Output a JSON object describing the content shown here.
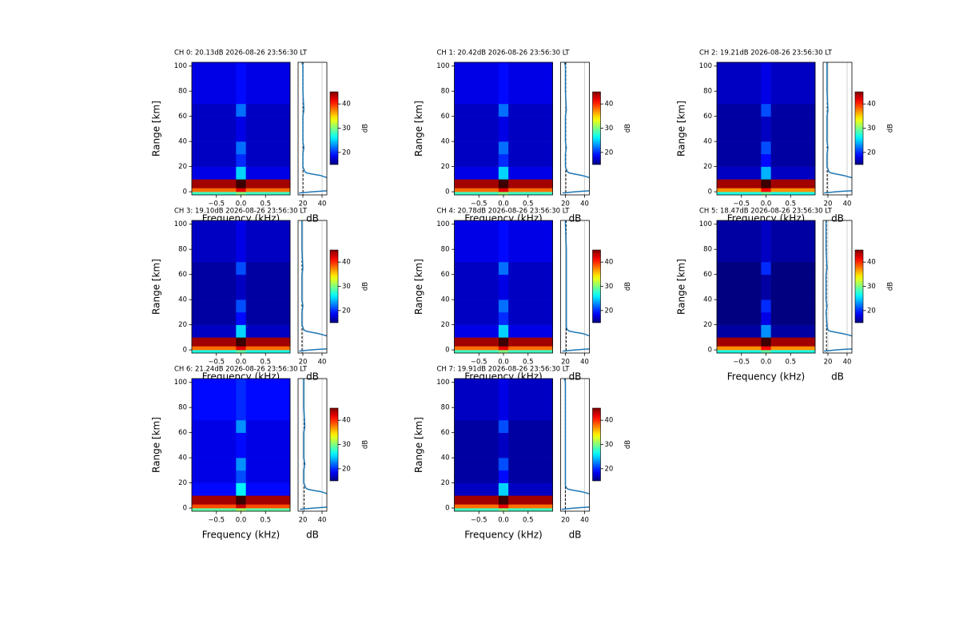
{
  "shared": {
    "xlabel": "Frequency (kHz)",
    "ylabel": "Range [km]",
    "xlim": [
      -1,
      1
    ],
    "xticks": [
      {
        "value": -0.5,
        "label": "−0.5"
      },
      {
        "value": 0,
        "label": "0.0"
      },
      {
        "value": 0.5,
        "label": "0.5"
      }
    ],
    "ylim": [
      -2.5,
      103
    ],
    "yticks": [
      0,
      20,
      40,
      60,
      80,
      100
    ],
    "xbins": [
      -1,
      -0.1,
      0.1,
      1
    ],
    "ybins": [
      -2.5,
      0,
      3,
      10,
      20,
      30,
      40,
      60,
      70,
      103
    ],
    "colormap": "jet",
    "clim": [
      15,
      45
    ],
    "cticks": [
      20,
      30,
      40
    ],
    "clabel": "dB",
    "profile_xlabel": "dB",
    "profile_xlim": [
      15,
      45
    ],
    "profile_xticks": [
      20,
      40
    ],
    "profile_grid": true,
    "profile_color": "#1f77b4",
    "profile_range": [
      -1,
      0,
      0.5,
      1,
      2,
      10,
      12,
      13,
      14,
      15,
      16,
      18,
      20,
      30,
      35,
      40,
      60,
      65,
      80,
      100,
      103
    ]
  },
  "chart_data": [
    {
      "type": "heatmap",
      "title": "CH 0: 20.13dB 2026-08-26 23:56:30 LT",
      "noise": 20.13,
      "values": [
        [
          28,
          30,
          28
        ],
        [
          38,
          42,
          38
        ],
        [
          44,
          47,
          44
        ],
        [
          18,
          25,
          18
        ],
        [
          17,
          20,
          17
        ],
        [
          17,
          22,
          17
        ],
        [
          17,
          18,
          17
        ],
        [
          17,
          22,
          17
        ],
        [
          18,
          19,
          18
        ]
      ],
      "profile_db": [
        16,
        30,
        40,
        50,
        50,
        50,
        42,
        38,
        30,
        24,
        22,
        21,
        20,
        20,
        21,
        20,
        20,
        21,
        20,
        20,
        19
      ]
    },
    {
      "type": "heatmap",
      "title": "CH 1: 20.42dB 2026-08-26 23:56:30 LT",
      "noise": 20.42,
      "values": [
        [
          28,
          30,
          28
        ],
        [
          38,
          42,
          38
        ],
        [
          44,
          47,
          44
        ],
        [
          18,
          25,
          18
        ],
        [
          17,
          20,
          17
        ],
        [
          17,
          22,
          17
        ],
        [
          17,
          18,
          17
        ],
        [
          17,
          22,
          17
        ],
        [
          18,
          19,
          18
        ]
      ],
      "profile_db": [
        17,
        30,
        40,
        50,
        50,
        50,
        42,
        37,
        30,
        24,
        22,
        21,
        20,
        20,
        21,
        20,
        20,
        21,
        20,
        20,
        19
      ]
    },
    {
      "type": "heatmap",
      "title": "CH 2: 19.21dB 2026-08-26 23:56:30 LT",
      "noise": 19.21,
      "values": [
        [
          27,
          29,
          27
        ],
        [
          37,
          41,
          37
        ],
        [
          44,
          47,
          44
        ],
        [
          17,
          24,
          17
        ],
        [
          16,
          19,
          16
        ],
        [
          16,
          21,
          16
        ],
        [
          16,
          17,
          16
        ],
        [
          16,
          21,
          16
        ],
        [
          17,
          18,
          17
        ]
      ],
      "profile_db": [
        16,
        28,
        38,
        50,
        50,
        50,
        41,
        36,
        29,
        23,
        21,
        20,
        19,
        19,
        20,
        19,
        19,
        20,
        19,
        19,
        19
      ]
    },
    {
      "type": "heatmap",
      "title": "CH 3: 19.10dB 2026-08-26 23:56:30 LT",
      "noise": 19.1,
      "values": [
        [
          27,
          29,
          27
        ],
        [
          38,
          42,
          38
        ],
        [
          44,
          47,
          44
        ],
        [
          17,
          25,
          17
        ],
        [
          16,
          19,
          16
        ],
        [
          16,
          21,
          16
        ],
        [
          16,
          17,
          16
        ],
        [
          16,
          21,
          16
        ],
        [
          17,
          18,
          17
        ]
      ],
      "profile_db": [
        16,
        28,
        38,
        50,
        50,
        50,
        41,
        36,
        29,
        23,
        21,
        20,
        19,
        19,
        20,
        19,
        19,
        20,
        19,
        19,
        19
      ]
    },
    {
      "type": "heatmap",
      "title": "CH 4: 20.78dB 2026-08-26 23:56:30 LT",
      "noise": 20.78,
      "values": [
        [
          28,
          30,
          28
        ],
        [
          38,
          42,
          38
        ],
        [
          44,
          47,
          44
        ],
        [
          18,
          25,
          18
        ],
        [
          17,
          20,
          17
        ],
        [
          17,
          22,
          17
        ],
        [
          17,
          18,
          17
        ],
        [
          17,
          22,
          17
        ],
        [
          18,
          19,
          18
        ]
      ],
      "profile_db": [
        17,
        30,
        40,
        50,
        50,
        50,
        42,
        38,
        30,
        24,
        22,
        21,
        21,
        21,
        21,
        21,
        21,
        21,
        21,
        20,
        20
      ]
    },
    {
      "type": "heatmap",
      "title": "CH 5: 18.47dB 2026-08-26 23:56:30 LT",
      "noise": 18.47,
      "values": [
        [
          27,
          29,
          27
        ],
        [
          37,
          41,
          37
        ],
        [
          44,
          47,
          44
        ],
        [
          16,
          23,
          16
        ],
        [
          15,
          18,
          15
        ],
        [
          15,
          20,
          15
        ],
        [
          15,
          16,
          15
        ],
        [
          15,
          20,
          15
        ],
        [
          16,
          17,
          16
        ]
      ],
      "profile_db": [
        16,
        28,
        38,
        50,
        50,
        50,
        41,
        35,
        28,
        22,
        20,
        19,
        19,
        18,
        19,
        18,
        18,
        19,
        18,
        18,
        18
      ]
    },
    {
      "type": "heatmap",
      "title": "CH 6: 21.24dB 2026-08-26 23:56:30 LT",
      "noise": 21.24,
      "values": [
        [
          29,
          31,
          29
        ],
        [
          39,
          43,
          39
        ],
        [
          44,
          47,
          44
        ],
        [
          19,
          26,
          19
        ],
        [
          18,
          21,
          18
        ],
        [
          18,
          23,
          18
        ],
        [
          18,
          19,
          18
        ],
        [
          18,
          23,
          18
        ],
        [
          19,
          20,
          19
        ]
      ],
      "profile_db": [
        17,
        31,
        41,
        50,
        50,
        50,
        43,
        39,
        31,
        25,
        23,
        22,
        21,
        21,
        22,
        21,
        21,
        22,
        21,
        21,
        21
      ]
    },
    {
      "type": "heatmap",
      "title": "CH 7: 19.91dB 2026-08-26 23:56:30 LT",
      "noise": 19.91,
      "values": [
        [
          28,
          30,
          28
        ],
        [
          38,
          42,
          38
        ],
        [
          44,
          47,
          44
        ],
        [
          17,
          25,
          17
        ],
        [
          16,
          19,
          16
        ],
        [
          16,
          21,
          16
        ],
        [
          16,
          17,
          16
        ],
        [
          16,
          21,
          16
        ],
        [
          17,
          18,
          17
        ]
      ],
      "profile_db": [
        16,
        29,
        39,
        50,
        50,
        50,
        42,
        37,
        29,
        23,
        21,
        20,
        20,
        20,
        20,
        20,
        20,
        20,
        20,
        20,
        19
      ]
    }
  ]
}
